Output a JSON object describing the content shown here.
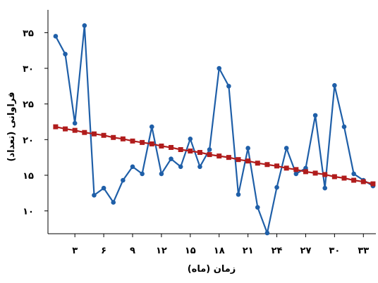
{
  "chart_data": {
    "type": "line",
    "title": "",
    "xlabel": "زمان (ماه)",
    "ylabel": "فراوانی (تعداد)",
    "x_tick_values": [
      3,
      6,
      9,
      12,
      15,
      18,
      21,
      24,
      27,
      30,
      33
    ],
    "x_tick_labels": [
      "۳",
      "۶",
      "۹",
      "۱۲",
      "۱۵",
      "۱۸",
      "۲۱",
      "۲۴",
      "۲۷",
      "۳۰",
      "۳۳"
    ],
    "y_tick_values": [
      10,
      15,
      20,
      25,
      30,
      35
    ],
    "y_tick_labels": [
      "۱۰",
      "۱۵",
      "۲۰",
      "۲۵",
      "۳۰",
      "۳۵"
    ],
    "xlim": [
      0.2,
      34.3
    ],
    "ylim": [
      6.8,
      38.2
    ],
    "grid": false,
    "legend": "none",
    "series": [
      {
        "color": "#1f5fa8",
        "marker": "circle",
        "x": [
          1,
          2,
          3,
          4,
          5,
          6,
          7,
          8,
          9,
          10,
          11,
          12,
          13,
          14,
          15,
          16,
          17,
          18,
          19,
          20,
          21,
          22,
          23,
          24,
          25,
          26,
          27,
          28,
          29,
          30,
          31,
          32,
          33,
          34
        ],
        "y": [
          34.5,
          32,
          22.3,
          36,
          12.2,
          13.2,
          11.2,
          14.3,
          16.2,
          15.2,
          21.8,
          15.2,
          17.3,
          16.2,
          20.1,
          16.2,
          18.6,
          30,
          27.5,
          12.3,
          18.8,
          10.5,
          6.9,
          13.3,
          18.8,
          15.2,
          16,
          23.4,
          13.2,
          27.6,
          21.8,
          15.2,
          14.3,
          13.5
        ]
      },
      {
        "color": "#b01c1c",
        "marker": "square",
        "x": [
          1,
          2,
          3,
          4,
          5,
          6,
          7,
          8,
          9,
          10,
          11,
          12,
          13,
          14,
          15,
          16,
          17,
          18,
          19,
          20,
          21,
          22,
          23,
          24,
          25,
          26,
          27,
          28,
          29,
          30,
          31,
          32,
          33,
          34
        ],
        "y": [
          21.8,
          21.5,
          21.3,
          21,
          20.8,
          20.6,
          20.3,
          20.1,
          19.8,
          19.6,
          19.4,
          19.1,
          18.9,
          18.6,
          18.4,
          18.2,
          17.9,
          17.7,
          17.5,
          17.2,
          17,
          16.7,
          16.5,
          16.3,
          16,
          15.8,
          15.5,
          15.3,
          15.1,
          14.8,
          14.6,
          14.3,
          14.1,
          13.8
        ]
      }
    ]
  }
}
